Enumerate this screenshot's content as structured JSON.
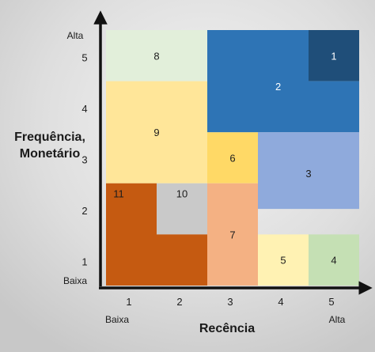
{
  "chart_data": {
    "type": "heatmap",
    "x_axis": {
      "title": "Recência",
      "ticks": [
        "1",
        "2",
        "3",
        "4",
        "5"
      ],
      "low_label": "Baixa",
      "high_label": "Alta",
      "range": [
        1,
        5
      ]
    },
    "y_axis": {
      "title_lines": [
        "Frequência,",
        "Monetário"
      ],
      "ticks": [
        "1",
        "2",
        "3",
        "4",
        "5"
      ],
      "low_label": "Baixa",
      "high_label": "Alta",
      "range": [
        1,
        5
      ]
    },
    "segments": [
      {
        "label": "1",
        "color": "#1f4e79",
        "polygon": [
          [
            4.5,
            4.5
          ],
          [
            5.5,
            4.5
          ],
          [
            5.5,
            5.5
          ],
          [
            4.5,
            5.5
          ]
        ],
        "label_at": [
          5.0,
          5.0
        ],
        "label_color": "#ffffff"
      },
      {
        "label": "2",
        "color": "#2e74b5",
        "polygon": [
          [
            2.5,
            3.5
          ],
          [
            5.5,
            3.5
          ],
          [
            5.5,
            4.5
          ],
          [
            4.5,
            4.5
          ],
          [
            4.5,
            5.5
          ],
          [
            2.5,
            5.5
          ]
        ],
        "label_at": [
          3.9,
          4.4
        ],
        "label_color": "#ffffff"
      },
      {
        "label": "3",
        "color": "#8faadc",
        "polygon": [
          [
            3.5,
            2.0
          ],
          [
            5.5,
            2.0
          ],
          [
            5.5,
            3.5
          ],
          [
            3.5,
            3.5
          ]
        ],
        "label_at": [
          4.5,
          2.7
        ],
        "label_color": "#1c1c1c"
      },
      {
        "label": "4",
        "color": "#c5e0b4",
        "polygon": [
          [
            4.5,
            0.5
          ],
          [
            5.5,
            0.5
          ],
          [
            5.5,
            1.5
          ],
          [
            4.5,
            1.5
          ]
        ],
        "label_at": [
          5.0,
          1.0
        ],
        "label_color": "#1c1c1c"
      },
      {
        "label": "5",
        "color": "#fff2b3",
        "polygon": [
          [
            3.5,
            0.5
          ],
          [
            4.5,
            0.5
          ],
          [
            4.5,
            1.5
          ],
          [
            3.5,
            1.5
          ]
        ],
        "label_at": [
          4.0,
          1.0
        ],
        "label_color": "#1c1c1c"
      },
      {
        "label": "6",
        "color": "#ffd966",
        "polygon": [
          [
            2.5,
            2.5
          ],
          [
            3.5,
            2.5
          ],
          [
            3.5,
            3.5
          ],
          [
            2.5,
            3.5
          ]
        ],
        "label_at": [
          3.0,
          3.0
        ],
        "label_color": "#1c1c1c"
      },
      {
        "label": "7",
        "color": "#f4b183",
        "polygon": [
          [
            2.5,
            0.5
          ],
          [
            3.5,
            0.5
          ],
          [
            3.5,
            2.5
          ],
          [
            2.5,
            2.5
          ]
        ],
        "label_at": [
          3.0,
          1.5
        ],
        "label_color": "#1c1c1c"
      },
      {
        "label": "8",
        "color": "#e2efda",
        "polygon": [
          [
            0.5,
            4.5
          ],
          [
            2.5,
            4.5
          ],
          [
            2.5,
            5.5
          ],
          [
            0.5,
            5.5
          ]
        ],
        "label_at": [
          1.5,
          5.0
        ],
        "label_color": "#1c1c1c"
      },
      {
        "label": "9",
        "color": "#ffe699",
        "polygon": [
          [
            0.5,
            2.5
          ],
          [
            2.5,
            2.5
          ],
          [
            2.5,
            4.5
          ],
          [
            0.5,
            4.5
          ]
        ],
        "label_at": [
          1.5,
          3.5
        ],
        "label_color": "#1c1c1c"
      },
      {
        "label": "10",
        "color": "#c9c9c9",
        "polygon": [
          [
            1.5,
            1.5
          ],
          [
            2.5,
            1.5
          ],
          [
            2.5,
            2.5
          ],
          [
            1.5,
            2.5
          ]
        ],
        "label_at": [
          2.0,
          2.3
        ],
        "label_color": "#1c1c1c"
      },
      {
        "label": "11",
        "color": "#c55a11",
        "polygon": [
          [
            0.5,
            0.5
          ],
          [
            2.5,
            0.5
          ],
          [
            2.5,
            1.5
          ],
          [
            1.5,
            1.5
          ],
          [
            1.5,
            2.5
          ],
          [
            0.5,
            2.5
          ]
        ],
        "label_at": [
          0.75,
          2.3
        ],
        "label_color": "#1c1c1c"
      }
    ]
  }
}
